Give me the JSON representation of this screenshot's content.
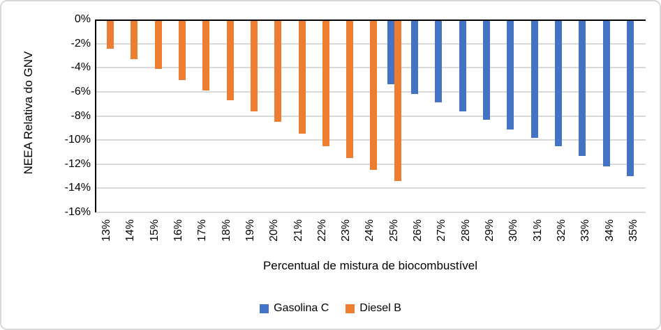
{
  "chart_data": {
    "type": "bar",
    "xlabel": "Percentual de mistura de biocombustível",
    "ylabel": "NEEA Relativa do GNV",
    "categories": [
      "13%",
      "14%",
      "15%",
      "16%",
      "17%",
      "18%",
      "19%",
      "20%",
      "21%",
      "22%",
      "23%",
      "24%",
      "25%",
      "26%",
      "27%",
      "28%",
      "29%",
      "30%",
      "31%",
      "32%",
      "33%",
      "34%",
      "35%"
    ],
    "series": [
      {
        "name": "Gasolina C",
        "color": "#4472C4",
        "values": [
          null,
          null,
          null,
          null,
          null,
          null,
          null,
          null,
          null,
          null,
          null,
          null,
          -5.4,
          -6.2,
          -6.9,
          -7.6,
          -8.3,
          -9.1,
          -9.8,
          -10.5,
          -11.3,
          -12.2,
          -13.0
        ]
      },
      {
        "name": "Diesel B",
        "color": "#ED7D31",
        "values": [
          -2.4,
          -3.3,
          -4.1,
          -5.0,
          -5.9,
          -6.7,
          -7.6,
          -8.5,
          -9.5,
          -10.5,
          -11.5,
          -12.5,
          -13.4,
          null,
          null,
          null,
          null,
          null,
          null,
          null,
          null,
          null,
          null
        ]
      }
    ],
    "ylim": [
      -16,
      0
    ],
    "ytick_labels": [
      "0%",
      "-2%",
      "-4%",
      "-6%",
      "-8%",
      "-10%",
      "-12%",
      "-14%",
      "-16%"
    ],
    "grid": true,
    "legend_position": "bottom",
    "axis_color": "#000000",
    "gridline_color": "#D9D9D9",
    "background_color": "#FFFFFF",
    "border_color": "#D9D9D9"
  }
}
